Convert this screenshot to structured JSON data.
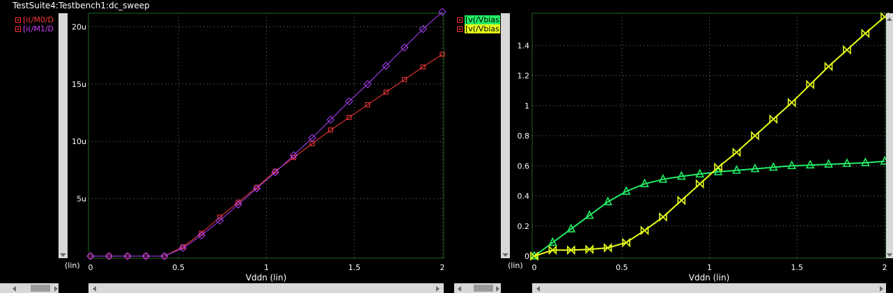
{
  "window": {
    "title": "TestSuite4:Testbench1:dc_sweep"
  },
  "colors": {
    "red": "#ff3a3a",
    "purple": "#b040ff",
    "green": "#22ee66",
    "yellow": "#e8ff1a",
    "grid": "#7a7a7a",
    "frame": "#1c6a1c"
  },
  "icons": {
    "scroll_left": "triangle-left",
    "scroll_right": "triangle-right",
    "scroll_down": "triangle-down",
    "scroll_up": "triangle-up"
  },
  "chart_data": [
    {
      "type": "line",
      "xlabel": "Vddn (lin)",
      "ylabel_note": "(lin)",
      "xlim": [
        0,
        2
      ],
      "ylim": [
        0,
        21
      ],
      "xticks": [
        "0",
        "0.5",
        "1",
        "1.5",
        "2"
      ],
      "xtick_values": [
        0,
        0.5,
        1,
        1.5,
        2
      ],
      "yticks": [
        "5u",
        "10u",
        "15u",
        "20u"
      ],
      "ytick_values": [
        5,
        10,
        15,
        20
      ],
      "x": [
        0,
        0.105,
        0.21,
        0.315,
        0.42,
        0.525,
        0.63,
        0.735,
        0.84,
        0.945,
        1.05,
        1.155,
        1.26,
        1.365,
        1.47,
        1.575,
        1.68,
        1.785,
        1.89,
        2.0
      ],
      "series": [
        {
          "name": "[i(/M0/D",
          "color": "red",
          "marker": "square",
          "values": [
            0,
            0,
            0,
            0,
            0,
            0.8,
            2.0,
            3.4,
            4.7,
            6.0,
            7.4,
            8.6,
            9.8,
            11.0,
            12.1,
            13.2,
            14.3,
            15.4,
            16.5,
            17.6
          ]
        },
        {
          "name": "[i(/M1/D",
          "color": "purple",
          "marker": "diamond",
          "values": [
            0,
            0,
            0,
            0,
            0,
            0.7,
            1.8,
            3.1,
            4.5,
            5.9,
            7.3,
            8.8,
            10.3,
            11.9,
            13.5,
            15.0,
            16.6,
            18.2,
            19.8,
            21.3
          ]
        }
      ]
    },
    {
      "type": "line",
      "xlabel": "Vddn (lin)",
      "ylabel_note": "(lin)",
      "xlim": [
        0,
        2
      ],
      "ylim": [
        0,
        1.6
      ],
      "xticks": [
        "0",
        "0.5",
        "1",
        "1.5",
        "2"
      ],
      "xtick_values": [
        0,
        0.5,
        1,
        1.5,
        2
      ],
      "yticks": [
        "0",
        "0.2",
        "0.4",
        "0.6",
        "0.8",
        "1",
        "1.2",
        "1.4"
      ],
      "ytick_values": [
        0,
        0.2,
        0.4,
        0.6,
        0.8,
        1,
        1.2,
        1.4
      ],
      "x": [
        0,
        0.105,
        0.21,
        0.315,
        0.42,
        0.525,
        0.63,
        0.735,
        0.84,
        0.945,
        1.05,
        1.155,
        1.26,
        1.365,
        1.47,
        1.575,
        1.68,
        1.785,
        1.89,
        2.0
      ],
      "series": [
        {
          "name": "[v(/Vbias",
          "color": "green",
          "marker": "triangle",
          "values": [
            0,
            0.09,
            0.18,
            0.27,
            0.36,
            0.43,
            0.48,
            0.51,
            0.53,
            0.545,
            0.56,
            0.57,
            0.58,
            0.59,
            0.6,
            0.605,
            0.61,
            0.615,
            0.62,
            0.63
          ]
        },
        {
          "name": "[v(/Vbias",
          "color": "yellow",
          "marker": "bowtie",
          "values": [
            0,
            0.04,
            0.04,
            0.045,
            0.055,
            0.09,
            0.17,
            0.26,
            0.37,
            0.48,
            0.59,
            0.69,
            0.8,
            0.91,
            1.02,
            1.14,
            1.26,
            1.37,
            1.48,
            1.59
          ]
        }
      ]
    }
  ]
}
